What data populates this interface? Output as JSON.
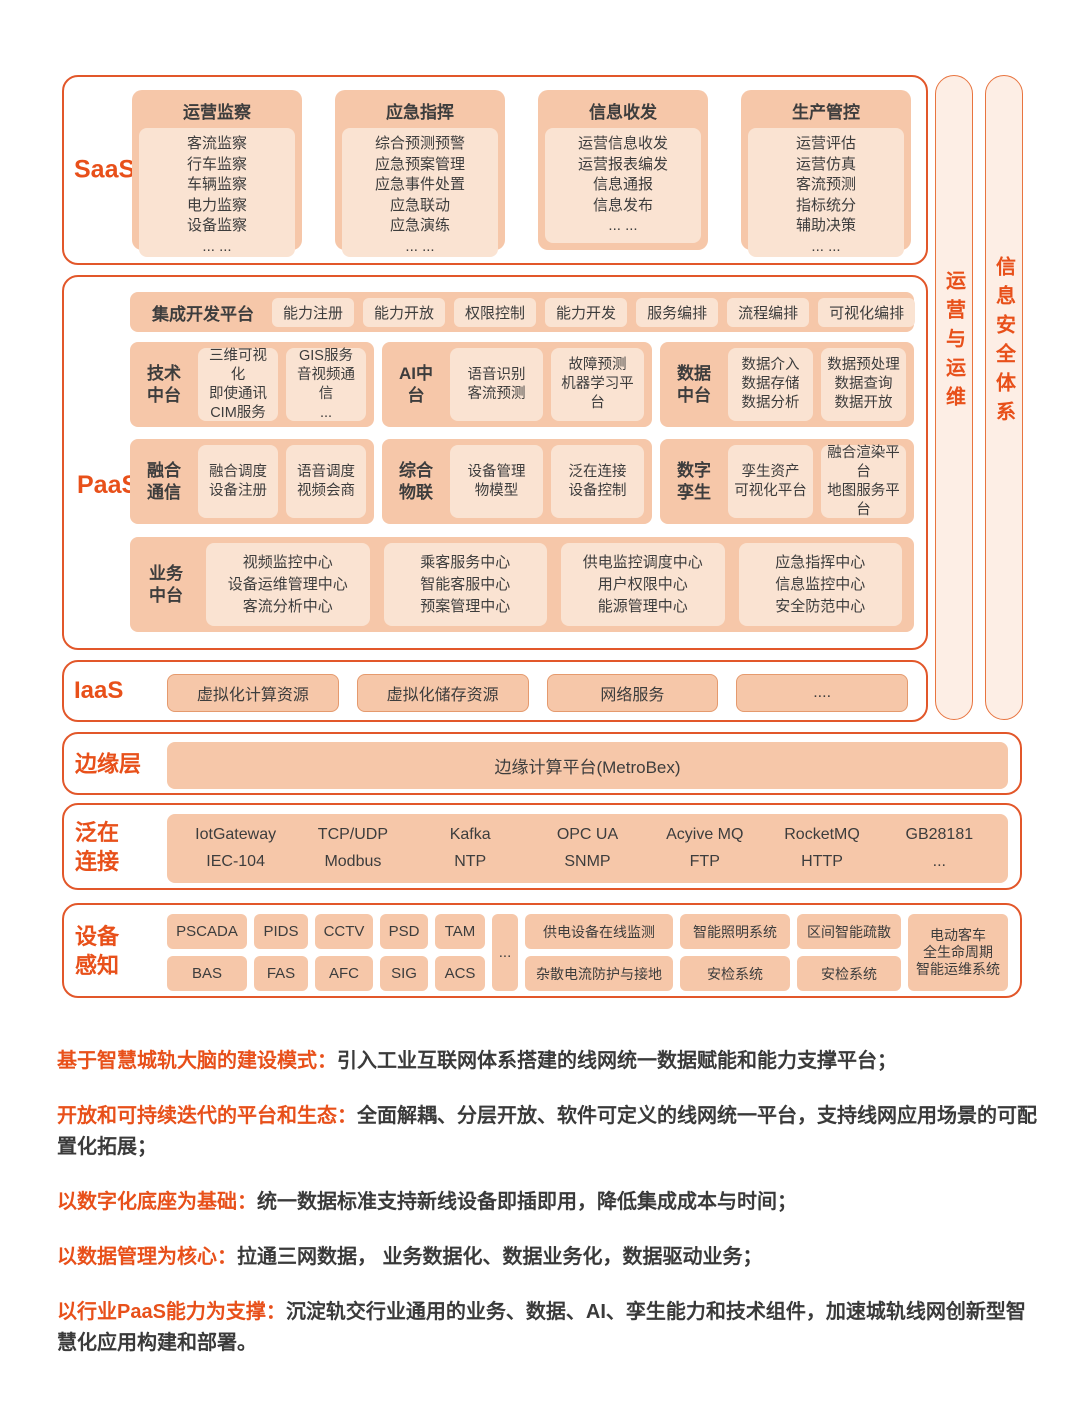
{
  "saas": {
    "label": "SaaS",
    "columns": [
      {
        "title": "运营监察",
        "items": [
          "客流监察",
          "行车监察",
          "车辆监察",
          "电力监察",
          "设备监察",
          "... ..."
        ]
      },
      {
        "title": "应急指挥",
        "items": [
          "综合预测预警",
          "应急预案管理",
          "应急事件处置",
          "应急联动",
          "应急演练",
          "... ..."
        ]
      },
      {
        "title": "信息收发",
        "items": [
          "运营信息收发",
          "运营报表编发",
          "信息通报",
          "信息发布",
          "... ..."
        ]
      },
      {
        "title": "生产管控",
        "items": [
          "运营评估",
          "运营仿真",
          "客流预测",
          "指标统分",
          "辅助决策",
          "... ..."
        ]
      }
    ]
  },
  "paas": {
    "label": "PaaS",
    "idp": {
      "title": "集成开发平台",
      "chips": [
        "能力注册",
        "能力开放",
        "权限控制",
        "能力开发",
        "服务编排",
        "流程编排",
        "可视化编排"
      ]
    },
    "tech": {
      "name": "技术中台",
      "box1": [
        "三维可视化",
        "即使通讯",
        "CIM服务"
      ],
      "box2": [
        "GIS服务",
        "音视频通信",
        "..."
      ]
    },
    "ai": {
      "name": "AI中台",
      "box1": [
        "语音识别",
        "客流预测"
      ],
      "box2": [
        "故障预测",
        "机器学习平台"
      ]
    },
    "data": {
      "name": "数据中台",
      "box1": [
        "数据介入",
        "数据存储",
        "数据分析"
      ],
      "box2": [
        "数据预处理",
        "数据查询",
        "数据开放"
      ]
    },
    "comm": {
      "name": "融合通信",
      "box1": [
        "融合调度",
        "设备注册"
      ],
      "box2": [
        "语音调度",
        "视频会商"
      ]
    },
    "iot": {
      "name": "综合物联",
      "box1": [
        "设备管理",
        "物模型"
      ],
      "box2": [
        "泛在连接",
        "设备控制"
      ]
    },
    "twin": {
      "name": "数字孪生",
      "box1": [
        "孪生资产",
        "可视化平台"
      ],
      "box2": [
        "融合渲染平台",
        "地图服务平台"
      ]
    },
    "biz": {
      "name": "业务中台",
      "box1": [
        "视频监控中心",
        "设备运维管理中心",
        "客流分析中心"
      ],
      "box2": [
        "乘客服务中心",
        "智能客服中心",
        "预案管理中心"
      ],
      "box3": [
        "供电监控调度中心",
        "用户权限中心",
        "能源管理中心"
      ],
      "box4": [
        "应急指挥中心",
        "信息监控中心",
        "安全防范中心"
      ]
    }
  },
  "iaas": {
    "label": "IaaS",
    "boxes": [
      "虚拟化计算资源",
      "虚拟化储存资源",
      "网络服务",
      "...."
    ]
  },
  "edge": {
    "label": "边缘层",
    "platform": "边缘计算平台(MetroBex)"
  },
  "conn": {
    "label": "泛在连接",
    "row1": [
      "IotGateway",
      "TCP/UDP",
      "Kafka",
      "OPC UA",
      "Acyive MQ",
      "RocketMQ",
      "GB28181"
    ],
    "row2": [
      "IEC-104",
      "Modbus",
      "NTP",
      "SNMP",
      "FTP",
      "HTTP",
      "..."
    ]
  },
  "device": {
    "label": "设备感知",
    "small_top": [
      "PSCADA",
      "PIDS",
      "CCTV",
      "PSD",
      "TAM"
    ],
    "small_bottom": [
      "BAS",
      "FAS",
      "AFC",
      "SIG",
      "ACS"
    ],
    "ellipsis": "...",
    "big_top": [
      "供电设备在线监测",
      "智能照明系统",
      "区间智能疏散"
    ],
    "big_bottom": [
      "杂散电流防护与接地",
      "安检系统",
      "安检系统"
    ],
    "tall": [
      "电动客车",
      "全生命周期",
      "智能运维系统"
    ]
  },
  "sidebars": {
    "ops": "运营与运维",
    "security": "信息安全体系"
  },
  "notes": [
    {
      "lead": "基于智慧城轨大脑的建设模式：",
      "text": "引入工业互联网体系搭建的线网统一数据赋能和能力支撑平台；"
    },
    {
      "lead": "开放和可持续迭代的平台和生态：",
      "text": "全面解耦、分层开放、软件可定义的线网统一平台，支持线网应用场景的可配置化拓展；"
    },
    {
      "lead": "以数字化底座为基础：",
      "text": "统一数据标准支持新线设备即插即用，降低集成成本与时间；"
    },
    {
      "lead": "以数据管理为核心：",
      "text": "拉通三网数据， 业务数据化、数据业务化，数据驱动业务；"
    },
    {
      "lead": "以行业PaaS能力为支撑：",
      "text": "沉淀轨交行业通用的业务、数据、AI、孪生能力和技术组件，加速城轨线网创新型智慧化应用构建和部署。"
    }
  ],
  "colors": {
    "accent": "#e8501a",
    "border": "#e2572a",
    "box": "#f6c7a9",
    "box_light": "#fae3d2",
    "text_dark": "#3d3d3d"
  }
}
